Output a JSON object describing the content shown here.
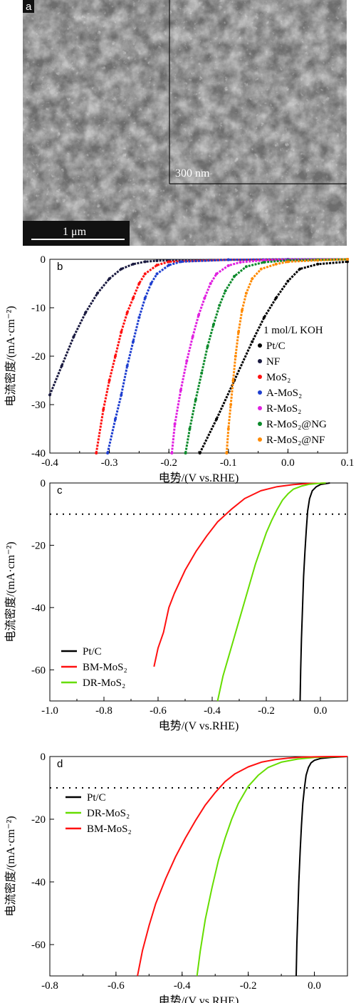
{
  "panel_a": {
    "letter": "a",
    "scale_bar_main": "1 μm",
    "scale_bar_inset": "300 nm"
  },
  "chart_data": [
    {
      "panel": "b",
      "type": "line",
      "xlabel": "电势/(V vs.RHE)",
      "ylabel": "电流密度/(mA·cm⁻²)",
      "xlim": [
        -0.4,
        0.1
      ],
      "ylim": [
        -40,
        0
      ],
      "xticks": [
        "-0.4",
        "-0.3",
        "-0.2",
        "-0.1",
        "0.0",
        "0.1"
      ],
      "yticks": [
        "0",
        "-10",
        "-20",
        "-30",
        "-40"
      ],
      "legend_title": "1 mol/L KOH",
      "legend_position": "right",
      "marker": "dots",
      "series": [
        {
          "name": "Pt/C",
          "color": "#000000",
          "x": [
            -0.148,
            -0.12,
            -0.09,
            -0.06,
            -0.04,
            -0.02,
            0.0,
            0.02,
            0.05,
            0.1
          ],
          "y": [
            -40,
            -33,
            -25,
            -17,
            -12,
            -8,
            -4.5,
            -2,
            -1,
            -0.5
          ]
        },
        {
          "name": "NF",
          "color": "#1a1a40",
          "x": [
            -0.4,
            -0.38,
            -0.36,
            -0.34,
            -0.32,
            -0.3,
            -0.28,
            -0.26,
            -0.24,
            -0.22,
            -0.2,
            -0.1,
            0.0,
            0.1
          ],
          "y": [
            -28,
            -22,
            -16,
            -11,
            -7,
            -4,
            -2,
            -1,
            -0.5,
            -0.3,
            -0.2,
            -0.1,
            -0.05,
            0
          ]
        },
        {
          "name": "MoS₂",
          "color": "#ff1010",
          "x": [
            -0.322,
            -0.31,
            -0.3,
            -0.29,
            -0.28,
            -0.27,
            -0.26,
            -0.25,
            -0.24,
            -0.22,
            -0.2,
            -0.1,
            0.0,
            0.1
          ],
          "y": [
            -40,
            -31,
            -25,
            -20,
            -15,
            -11,
            -8,
            -5,
            -3,
            -1.2,
            -0.5,
            -0.1,
            0,
            0
          ]
        },
        {
          "name": "A-MoS₂",
          "color": "#1f3fd0",
          "x": [
            -0.303,
            -0.29,
            -0.28,
            -0.27,
            -0.26,
            -0.25,
            -0.24,
            -0.23,
            -0.22,
            -0.2,
            -0.18,
            -0.1,
            0.0,
            0.1
          ],
          "y": [
            -40,
            -33,
            -28,
            -22,
            -17,
            -12,
            -8,
            -5,
            -3,
            -1.2,
            -0.5,
            -0.1,
            0,
            0
          ]
        },
        {
          "name": "R-MoS₂",
          "color": "#e020e0",
          "x": [
            -0.195,
            -0.19,
            -0.18,
            -0.17,
            -0.16,
            -0.15,
            -0.14,
            -0.13,
            -0.12,
            -0.1,
            -0.08,
            -0.04,
            0.0,
            0.1
          ],
          "y": [
            -40,
            -34,
            -27,
            -21,
            -16,
            -11.5,
            -8,
            -5,
            -3,
            -1.3,
            -0.6,
            -0.2,
            -0.1,
            0
          ]
        },
        {
          "name": "R-MoS₂@NG",
          "color": "#0a8a2a",
          "x": [
            -0.172,
            -0.165,
            -0.155,
            -0.145,
            -0.135,
            -0.125,
            -0.115,
            -0.105,
            -0.09,
            -0.07,
            -0.04,
            0.0,
            0.05,
            0.1
          ],
          "y": [
            -40,
            -35,
            -29,
            -23.5,
            -18,
            -13.5,
            -9.5,
            -6.5,
            -3.5,
            -1.5,
            -0.6,
            -0.2,
            -0.1,
            0
          ]
        },
        {
          "name": "R-MoS₂@NF",
          "color": "#ff8a00",
          "x": [
            -0.103,
            -0.1,
            -0.096,
            -0.092,
            -0.088,
            -0.083,
            -0.077,
            -0.07,
            -0.06,
            -0.045,
            -0.02,
            0.0,
            0.05,
            0.1
          ],
          "y": [
            -40,
            -35,
            -30,
            -25,
            -20,
            -15,
            -10.5,
            -7,
            -4,
            -2,
            -1,
            -0.5,
            -0.2,
            0
          ]
        }
      ]
    },
    {
      "panel": "c",
      "type": "line",
      "xlabel": "电势/(V vs.RHE)",
      "ylabel": "电流密度/(mA·cm⁻²)",
      "xlim": [
        -1.0,
        0.1
      ],
      "ylim": [
        -70,
        0
      ],
      "xticks": [
        "-1.0",
        "-0.8",
        "-0.6",
        "-0.4",
        "-0.2",
        "0.0"
      ],
      "yticks": [
        "0",
        "-20",
        "-40",
        "-60"
      ],
      "reference_line_y": -10,
      "legend_position": "bottom-left",
      "series": [
        {
          "name": "Pt/C",
          "color": "#000000",
          "x": [
            -0.075,
            -0.073,
            -0.07,
            -0.066,
            -0.062,
            -0.057,
            -0.052,
            -0.047,
            -0.04,
            -0.03,
            -0.015,
            0.0,
            0.02,
            0.035
          ],
          "y": [
            -70,
            -60,
            -50,
            -40,
            -30,
            -22,
            -15,
            -9,
            -5,
            -2.5,
            -1.2,
            -0.5,
            -0.2,
            0
          ]
        },
        {
          "name": "BM-MoS₂",
          "color": "#ff1010",
          "x": [
            -0.615,
            -0.6,
            -0.58,
            -0.56,
            -0.54,
            -0.5,
            -0.46,
            -0.42,
            -0.38,
            -0.33,
            -0.28,
            -0.22,
            -0.16,
            -0.1,
            -0.05,
            0.0,
            0.02
          ],
          "y": [
            -59,
            -53,
            -48,
            -40,
            -35.5,
            -28,
            -22,
            -17,
            -12.5,
            -8.5,
            -5,
            -2.5,
            -1.2,
            -0.5,
            -0.2,
            -0.1,
            0
          ]
        },
        {
          "name": "DR-MoS₂",
          "color": "#66dd00",
          "x": [
            -0.38,
            -0.36,
            -0.34,
            -0.32,
            -0.3,
            -0.28,
            -0.26,
            -0.24,
            -0.22,
            -0.2,
            -0.18,
            -0.16,
            -0.14,
            -0.12,
            -0.1,
            -0.07,
            -0.04,
            0.0,
            0.02
          ],
          "y": [
            -70,
            -62,
            -56,
            -50,
            -44,
            -38,
            -32,
            -26,
            -21,
            -16,
            -12,
            -8.5,
            -5.5,
            -3.5,
            -2,
            -1,
            -0.4,
            -0.1,
            0
          ]
        }
      ]
    },
    {
      "panel": "d",
      "type": "line",
      "xlabel": "电势/(V vs.RHE)",
      "ylabel": "电流密度/(mA·cm⁻²)",
      "xlim": [
        -0.8,
        0.1
      ],
      "ylim": [
        -70,
        0
      ],
      "xticks": [
        "-0.8",
        "-0.6",
        "-0.4",
        "-0.2",
        "0.0"
      ],
      "yticks": [
        "0",
        "-20",
        "-40",
        "-60"
      ],
      "reference_line_y": -10,
      "legend_position": "top-left",
      "series": [
        {
          "name": "Pt/C",
          "color": "#000000",
          "x": [
            -0.055,
            -0.053,
            -0.05,
            -0.047,
            -0.043,
            -0.039,
            -0.035,
            -0.03,
            -0.025,
            -0.018,
            -0.01,
            0.0,
            0.02,
            0.05,
            0.1
          ],
          "y": [
            -70,
            -60,
            -50,
            -40,
            -30,
            -22,
            -15,
            -10,
            -6,
            -3.5,
            -2,
            -1.2,
            -0.6,
            -0.3,
            0
          ]
        },
        {
          "name": "DR-MoS₂",
          "color": "#66dd00",
          "x": [
            -0.355,
            -0.345,
            -0.33,
            -0.31,
            -0.29,
            -0.27,
            -0.25,
            -0.23,
            -0.2,
            -0.17,
            -0.14,
            -0.1,
            -0.05,
            0.0,
            0.05,
            0.1
          ],
          "y": [
            -70,
            -62,
            -52,
            -42,
            -33,
            -26,
            -20,
            -15,
            -9.5,
            -6,
            -3.5,
            -1.8,
            -0.8,
            -0.3,
            -0.1,
            0
          ]
        },
        {
          "name": "BM-MoS₂",
          "color": "#ff1010",
          "x": [
            -0.535,
            -0.52,
            -0.5,
            -0.48,
            -0.45,
            -0.42,
            -0.39,
            -0.36,
            -0.33,
            -0.3,
            -0.27,
            -0.24,
            -0.2,
            -0.16,
            -0.12,
            -0.08,
            -0.04,
            0.0,
            0.05,
            0.1
          ],
          "y": [
            -70,
            -62,
            -54,
            -47,
            -39,
            -32,
            -26,
            -20.5,
            -15.5,
            -11.5,
            -8,
            -5.5,
            -3.3,
            -1.8,
            -1,
            -0.5,
            -0.2,
            -0.1,
            0,
            0
          ]
        }
      ]
    }
  ]
}
